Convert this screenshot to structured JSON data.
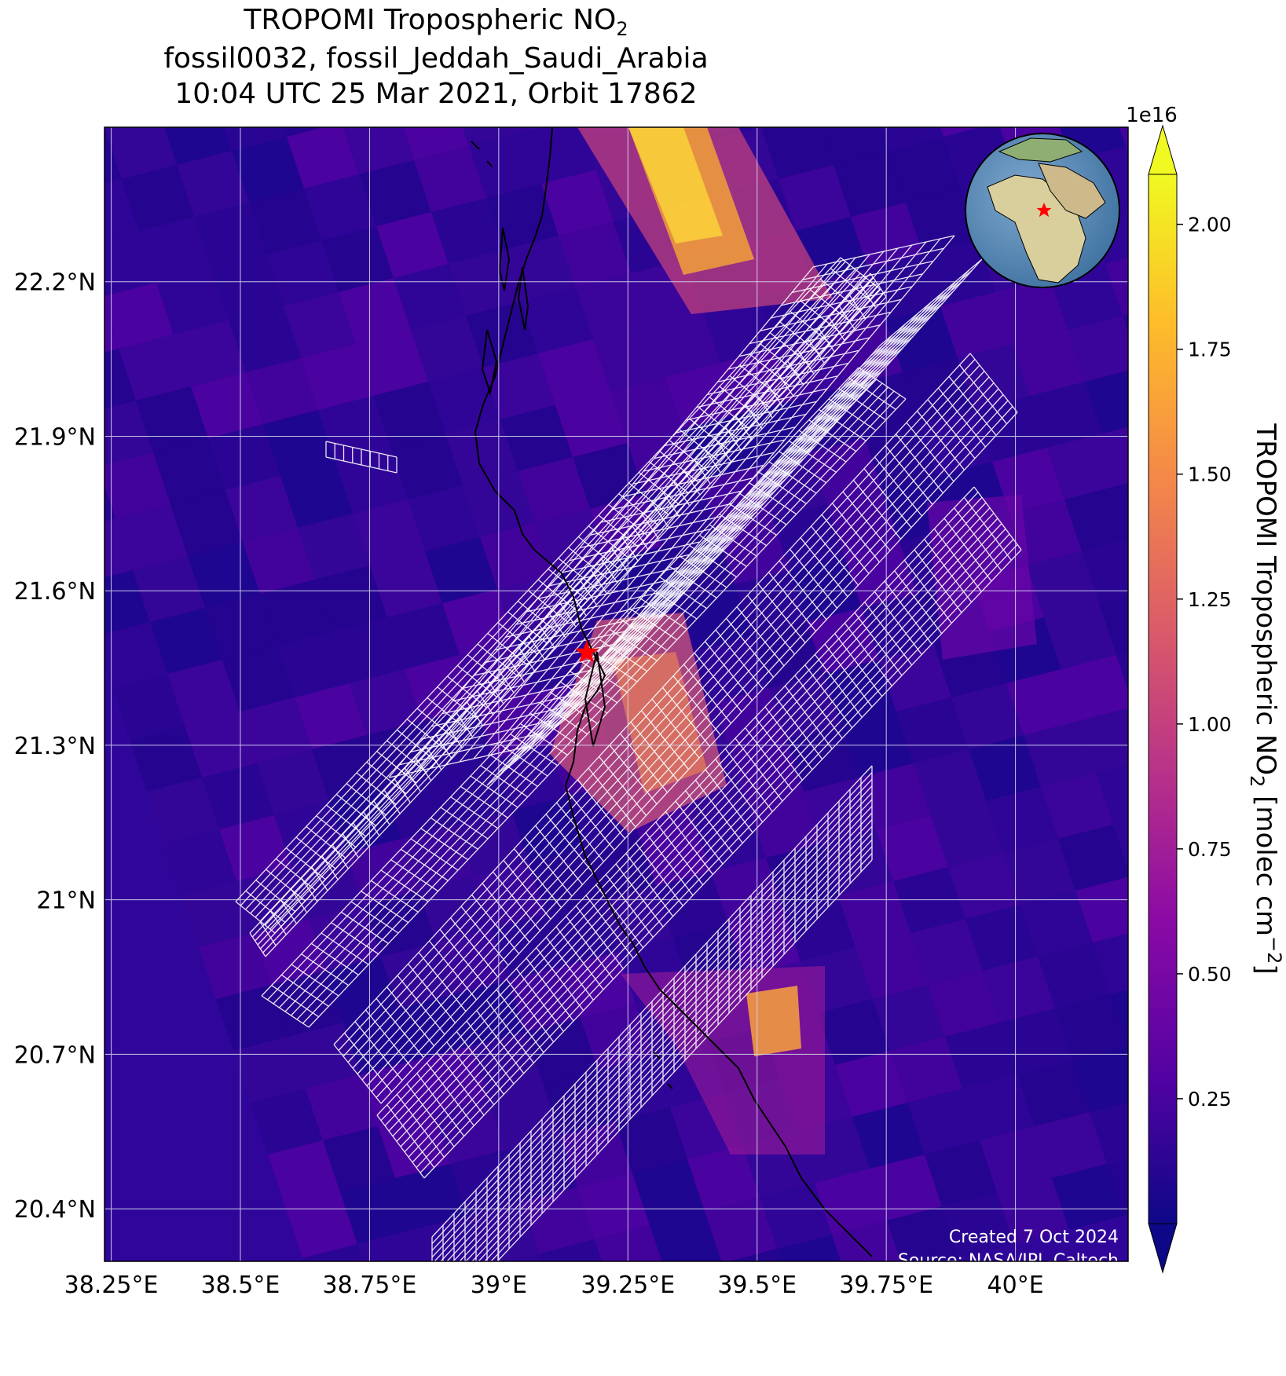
{
  "title": {
    "line1_prefix": "TROPOMI Tropospheric NO",
    "line1_sub": "2",
    "line2": "fossil0032, fossil_Jeddah_Saudi_Arabia",
    "line3": "10:04 UTC 25 Mar 2021, Orbit 17862"
  },
  "map": {
    "x_ticks": [
      "38.25°E",
      "38.5°E",
      "38.75°E",
      "39°E",
      "39.25°E",
      "39.5°E",
      "39.75°E",
      "40°E"
    ],
    "y_ticks": [
      "22.2°N",
      "21.9°N",
      "21.6°N",
      "21.3°N",
      "21°N",
      "20.7°N",
      "20.4°N"
    ],
    "x_tick_values": [
      38.25,
      38.5,
      38.75,
      39.0,
      39.25,
      39.5,
      39.75,
      40.0
    ],
    "y_tick_values": [
      22.2,
      21.9,
      21.6,
      21.3,
      21.0,
      20.7,
      20.4
    ],
    "xlim": [
      38.237,
      40.218
    ],
    "ylim": [
      20.298,
      22.5
    ],
    "site_marker": {
      "lon": 39.17,
      "lat": 21.48,
      "color": "#ff0000",
      "icon": "star"
    },
    "gridlines": true,
    "inset_globe": {
      "icon": "globe-inset-icon",
      "marker_color": "#ff0000"
    }
  },
  "colorbar": {
    "label_prefix": "TROPOMI Tropospheric NO",
    "label_sub": "2",
    "label_suffix": " [molec cm",
    "label_sup": "−2",
    "label_end": "]",
    "exponent": "1e16",
    "ticks": [
      "0.25",
      "0.50",
      "0.75",
      "1.00",
      "1.25",
      "1.50",
      "1.75",
      "2.00"
    ],
    "tick_values": [
      0.25,
      0.5,
      0.75,
      1.0,
      1.25,
      1.5,
      1.75,
      2.0
    ],
    "range": [
      0.0,
      2.1
    ],
    "extend": "both",
    "colormap": "plasma",
    "colors": [
      "#0d0887",
      "#5302a3",
      "#8b0aa5",
      "#b83289",
      "#db5c68",
      "#f48849",
      "#febd2a",
      "#f0f921"
    ]
  },
  "credits": {
    "created": "Created 7 Oct 2024",
    "source": "Source: NASA/JPL-Caltech"
  }
}
